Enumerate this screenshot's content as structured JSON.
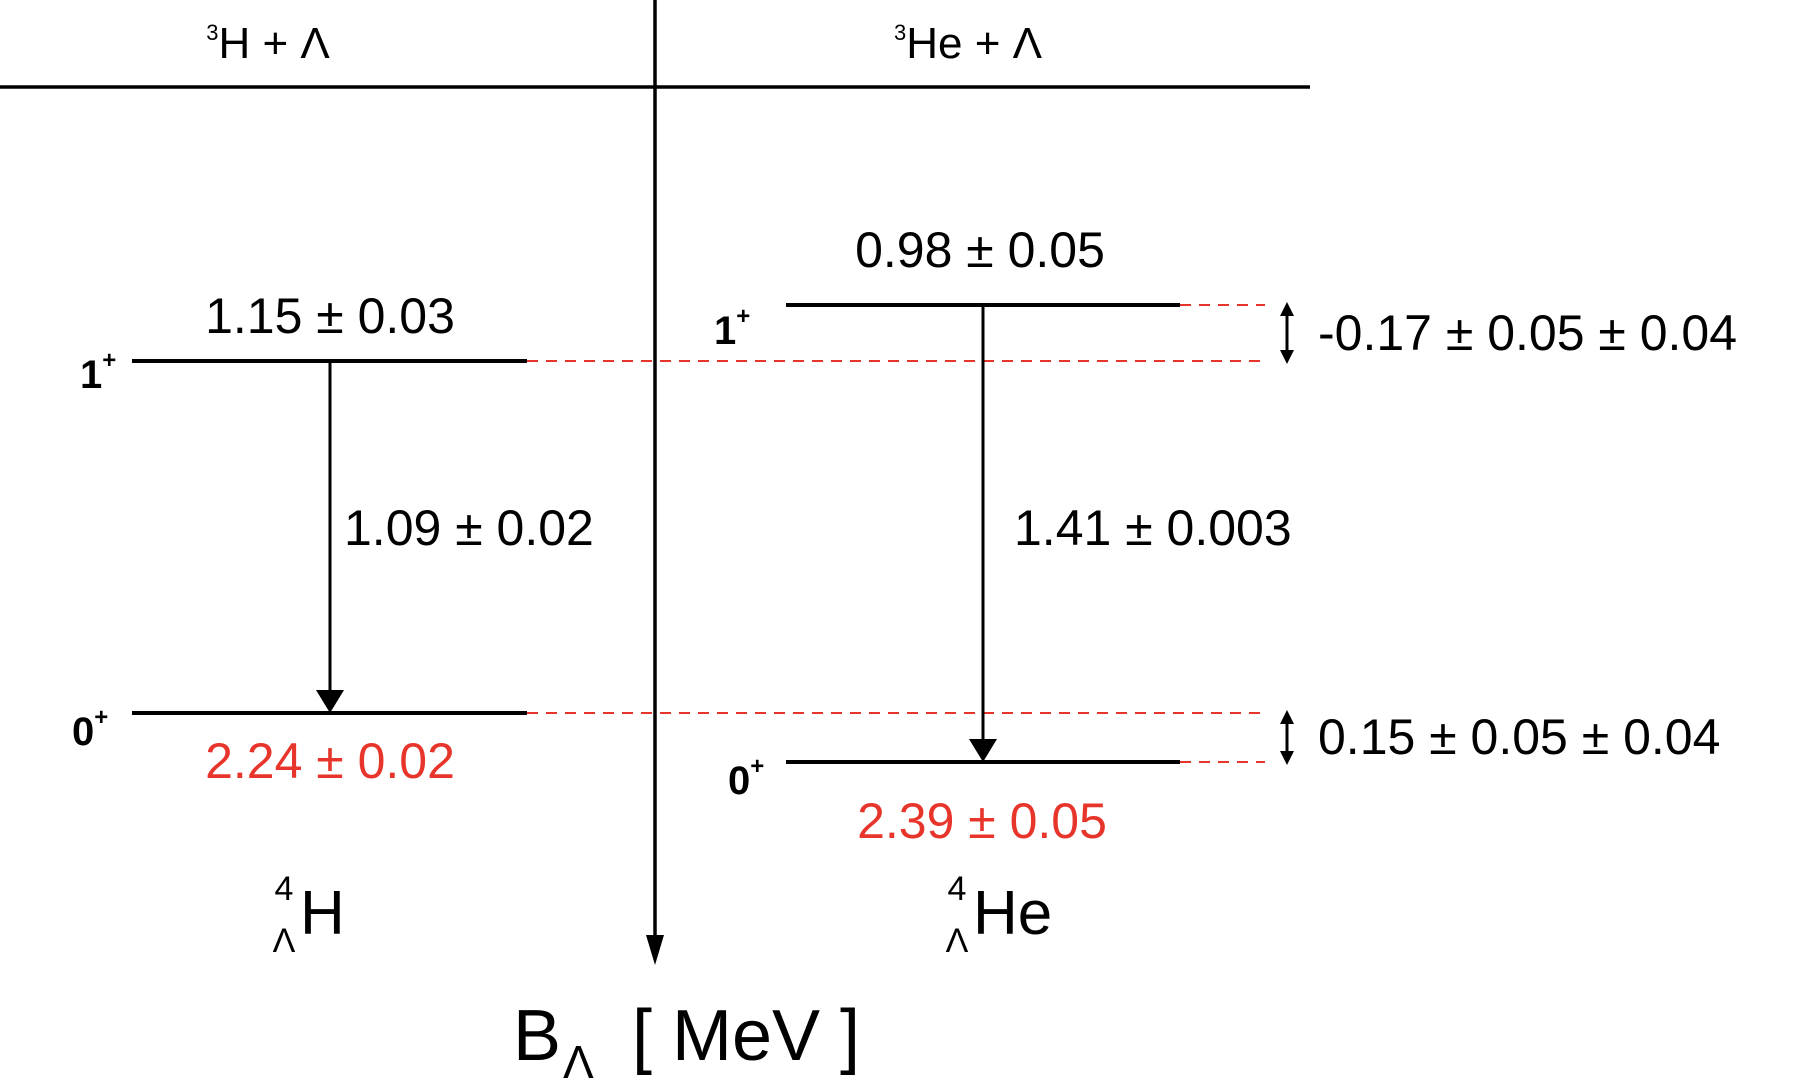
{
  "header": {
    "left_sup": "3",
    "left_text": "H + Λ",
    "right_sup": "3",
    "right_text": "He + Λ"
  },
  "left": {
    "level_1_label": "1",
    "level_1_sup": "+",
    "level_1_value": "1.15 ± 0.03",
    "level_0_label": "0",
    "level_0_sup": "+",
    "level_0_value": "2.24 ± 0.02",
    "transition": "1.09 ± 0.02",
    "nucleus_sup": "4",
    "nucleus_sub": "Λ",
    "nucleus_name": "H"
  },
  "right": {
    "level_1_label": "1",
    "level_1_sup": "+",
    "level_1_value": "0.98 ± 0.05",
    "level_0_label": "0",
    "level_0_sup": "+",
    "level_0_value": "2.39 ± 0.05",
    "transition": "1.41 ± 0.003",
    "nucleus_sup": "4",
    "nucleus_sub": "Λ",
    "nucleus_name": "He"
  },
  "differences": {
    "excited": "-0.17 ± 0.05 ± 0.04",
    "ground": "0.15 ± 0.05 ± 0.04"
  },
  "axis": {
    "symbol": "B",
    "subscript": "Λ",
    "unit": "[ MeV ]"
  },
  "colors": {
    "ground_state_value": "#e8352b",
    "dashed_guides": "#e8352b"
  }
}
